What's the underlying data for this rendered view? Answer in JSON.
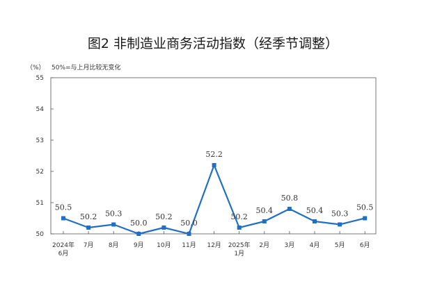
{
  "title": "图2  非制造业商务活动指数（经季节调整）",
  "unit_label": "（%）",
  "note": "50%=与上月比较无变化",
  "chart_data": {
    "type": "line",
    "title": "图2  非制造业商务活动指数（经季节调整）",
    "ylabel": "（%）",
    "xlabel": "",
    "ylim": [
      50,
      55
    ],
    "yticks": [
      "50",
      "51",
      "52",
      "53",
      "54",
      "55"
    ],
    "categories": [
      [
        "2024年",
        "6月"
      ],
      [
        "7月"
      ],
      [
        "8月"
      ],
      [
        "9月"
      ],
      [
        "10月"
      ],
      [
        "11月"
      ],
      [
        "12月"
      ],
      [
        "2025年",
        "1月"
      ],
      [
        "2月"
      ],
      [
        "3月"
      ],
      [
        "4月"
      ],
      [
        "5月"
      ],
      [
        "6月"
      ]
    ],
    "values": [
      50.5,
      50.2,
      50.3,
      50.0,
      50.2,
      50.0,
      52.2,
      50.2,
      50.4,
      50.8,
      50.4,
      50.3,
      50.5
    ],
    "data_labels": [
      "50.5",
      "50.2",
      "50.3",
      "50.0",
      "50.2",
      "50.0",
      "52.2",
      "50.2",
      "50.4",
      "50.8",
      "50.4",
      "50.3",
      "50.5"
    ],
    "line_color": "#1f6fc5",
    "grid": false
  }
}
